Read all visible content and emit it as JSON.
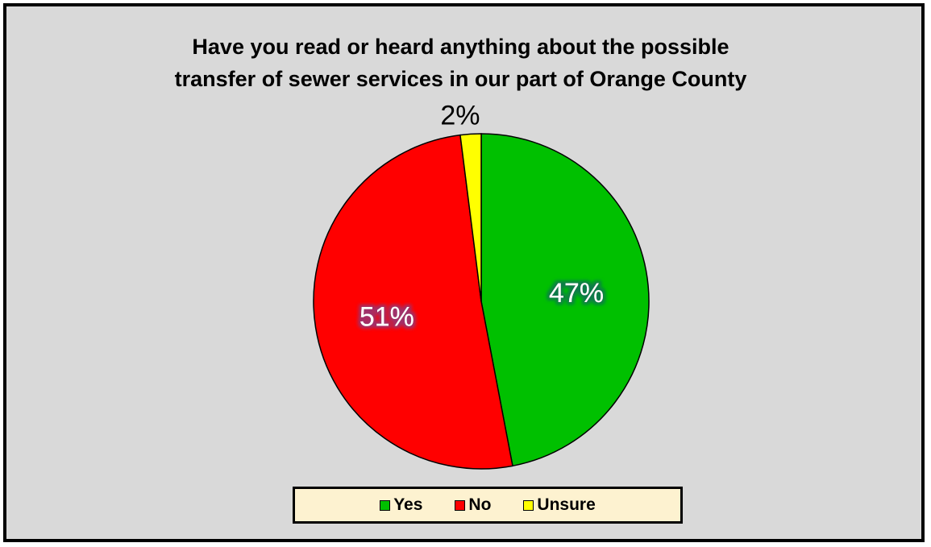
{
  "chart_data": {
    "type": "pie",
    "title_lines": [
      "Have you read or heard anything about the possible",
      "transfer of sewer services in our part of Orange County"
    ],
    "slices": [
      {
        "label": "Yes",
        "value": 47,
        "display": "47%",
        "color": "#00c000"
      },
      {
        "label": "No",
        "value": 51,
        "display": "51%",
        "color": "#ff0000"
      },
      {
        "label": "Unsure",
        "value": 2,
        "display": "2%",
        "color": "#ffff00"
      }
    ],
    "legend_position": "bottom",
    "background_color": "#d9d9d9",
    "legend_background": "#fdf2d0"
  }
}
